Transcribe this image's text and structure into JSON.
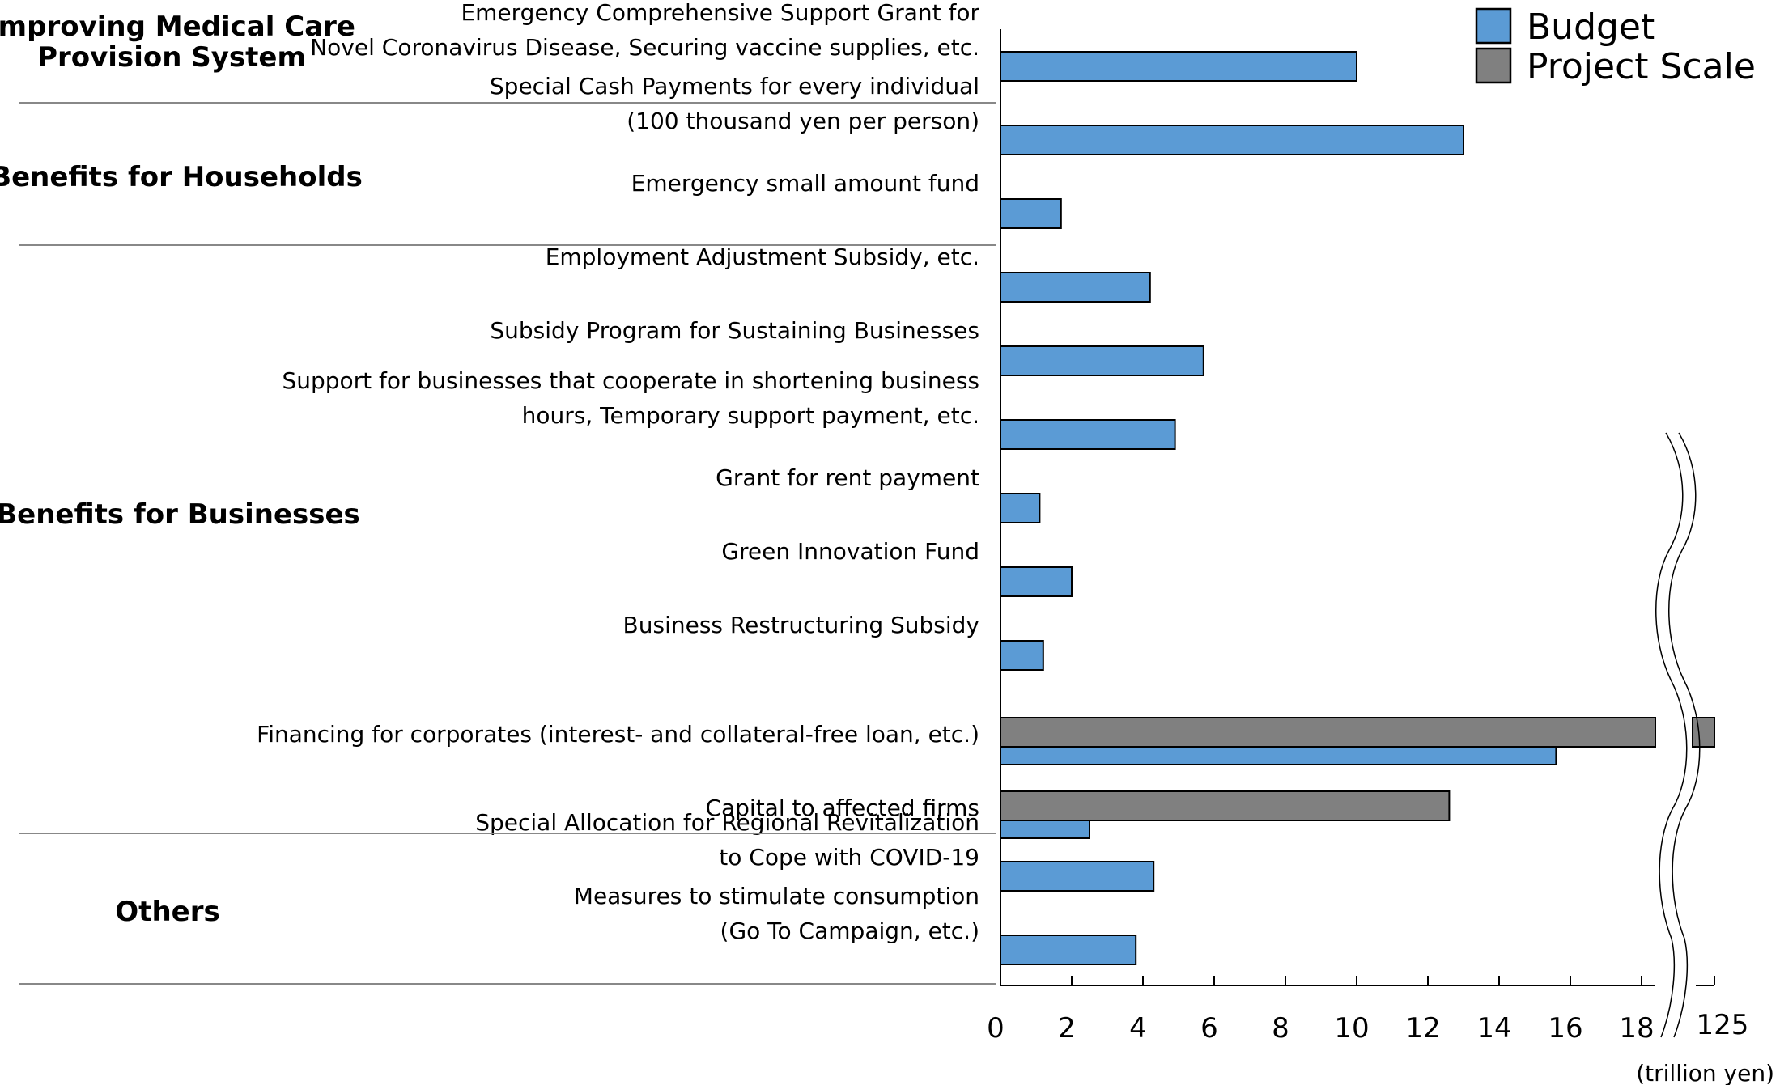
{
  "chart_data": {
    "type": "bar",
    "orientation": "horizontal",
    "unit": "(trillion yen)",
    "legend": {
      "placement": "top-right",
      "entries": [
        {
          "name": "Budget",
          "color": "#5b9bd5"
        },
        {
          "name": "Project Scale",
          "color": "#808080"
        }
      ]
    },
    "groups": [
      {
        "label": "Improving Medical Care\nProvision System"
      },
      {
        "label": "Benefits for Households"
      },
      {
        "label": "Benefits for Businesses"
      },
      {
        "label": "Others"
      }
    ],
    "categories": [
      {
        "label": "Emergency Comprehensive Support Grant for\nNovel Coronavirus Disease, Securing vaccine supplies, etc.",
        "group": 0,
        "budget": 10.0,
        "project_scale": null
      },
      {
        "label": "Special Cash Payments for every individual\n(100 thousand yen per person)",
        "group": 1,
        "budget": 13.0,
        "project_scale": null
      },
      {
        "label": "Emergency small amount fund",
        "group": 1,
        "budget": 1.7,
        "project_scale": null
      },
      {
        "label": "Employment Adjustment Subsidy, etc.",
        "group": 2,
        "budget": 4.2,
        "project_scale": null
      },
      {
        "label": "Subsidy Program for Sustaining Businesses",
        "group": 2,
        "budget": 5.7,
        "project_scale": null
      },
      {
        "label": "Support for businesses that cooperate in shortening business\nhours, Temporary support payment, etc.",
        "group": 2,
        "budget": 4.9,
        "project_scale": null
      },
      {
        "label": "Grant for rent payment",
        "group": 2,
        "budget": 1.1,
        "project_scale": null
      },
      {
        "label": "Green Innovation Fund",
        "group": 2,
        "budget": 2.0,
        "project_scale": null
      },
      {
        "label": "Business Restructuring Subsidy",
        "group": 2,
        "budget": 1.2,
        "project_scale": null
      },
      {
        "label": "Financing for corporates (interest- and collateral-free loan, etc.)",
        "group": 2,
        "budget": 15.6,
        "project_scale": 125
      },
      {
        "label": "Capital to affected firms",
        "group": 2,
        "budget": 2.5,
        "project_scale": 12.6
      },
      {
        "label": "Special Allocation for Regional Revitalization\nto Cope with COVID-19",
        "group": 3,
        "budget": 4.3,
        "project_scale": null
      },
      {
        "label": "Measures to stimulate consumption\n(Go To Campaign, etc.)",
        "group": 3,
        "budget": 3.8,
        "project_scale": null
      }
    ],
    "xaxis": {
      "ticks": [
        "0",
        "2",
        "4",
        "6",
        "8",
        "10",
        "12",
        "14",
        "16",
        "18"
      ],
      "break_tick": "125",
      "xlim": [
        0,
        18
      ],
      "axis_break": true
    },
    "grid": false
  }
}
